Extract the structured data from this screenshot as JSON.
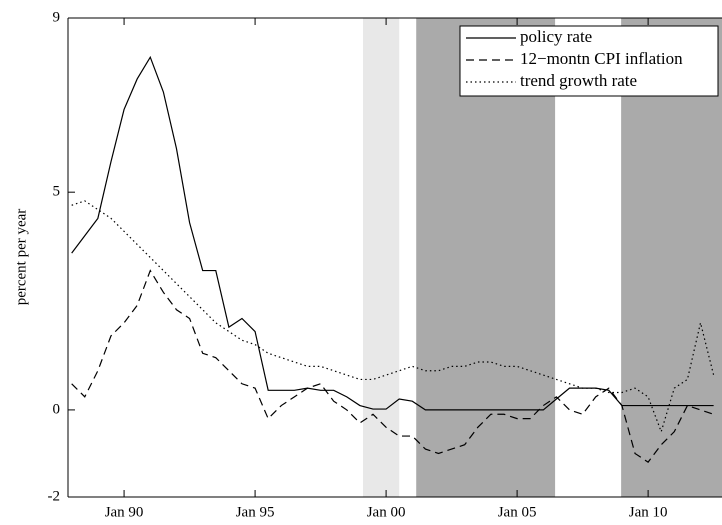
{
  "chart_data": {
    "type": "line",
    "y_label": "percent per year",
    "xlim": [
      1987.86,
      2012.82
    ],
    "ylim": [
      -2,
      9
    ],
    "yticks": [
      -2,
      0,
      5,
      9
    ],
    "xticks": [
      {
        "value": 1990,
        "label": "Jan 90"
      },
      {
        "value": 1995,
        "label": "Jan 95"
      },
      {
        "value": 2000,
        "label": "Jan 00"
      },
      {
        "value": 2005,
        "label": "Jan 05"
      },
      {
        "value": 2010,
        "label": "Jan 10"
      }
    ],
    "legend": "upper right",
    "shaded_regions": [
      {
        "start": 1999.12,
        "end": 2000.5,
        "color": "#e8e8e8"
      },
      {
        "start": 2001.15,
        "end": 2006.45,
        "color": "#aaaaaa"
      },
      {
        "start": 2008.97,
        "end": 2012.82,
        "color": "#aaaaaa"
      }
    ],
    "x": [
      1988,
      1988.5,
      1989,
      1989.5,
      1990,
      1990.5,
      1991,
      1991.5,
      1992,
      1992.5,
      1993,
      1993.5,
      1994,
      1994.5,
      1995,
      1995.5,
      1996,
      1996.5,
      1997,
      1997.5,
      1998,
      1998.5,
      1999,
      1999.5,
      2000,
      2000.5,
      2001,
      2001.5,
      2002,
      2002.5,
      2003,
      2003.5,
      2004,
      2004.5,
      2005,
      2005.5,
      2006,
      2006.5,
      2007,
      2007.5,
      2008,
      2008.5,
      2009,
      2009.5,
      2010,
      2010.5,
      2011,
      2011.5,
      2012,
      2012.5
    ],
    "series": [
      {
        "name": "policy rate",
        "color": "#000000",
        "dash": "solid",
        "values": [
          3.6,
          4.0,
          4.4,
          5.7,
          6.9,
          7.6,
          8.1,
          7.3,
          6.0,
          4.3,
          3.2,
          3.2,
          1.9,
          2.1,
          1.8,
          0.45,
          0.45,
          0.45,
          0.5,
          0.45,
          0.45,
          0.3,
          0.1,
          0.02,
          0.02,
          0.25,
          0.2,
          0,
          0,
          0,
          0,
          0,
          0,
          0,
          0,
          0,
          0,
          0.25,
          0.5,
          0.5,
          0.5,
          0.45,
          0.1,
          0.1,
          0.1,
          0.1,
          0.1,
          0.1,
          0.1,
          0.1
        ]
      },
      {
        "name": "12−montn CPI inflation",
        "color": "#000000",
        "dash": "dashed",
        "values": [
          0.6,
          0.3,
          0.9,
          1.7,
          2.0,
          2.4,
          3.2,
          2.7,
          2.3,
          2.1,
          1.3,
          1.2,
          0.9,
          0.6,
          0.5,
          -0.2,
          0.1,
          0.3,
          0.5,
          0.6,
          0.2,
          0.0,
          -0.3,
          -0.1,
          -0.4,
          -0.6,
          -0.6,
          -0.9,
          -1.0,
          -0.9,
          -0.8,
          -0.4,
          -0.1,
          -0.1,
          -0.2,
          -0.2,
          0.1,
          0.3,
          0.0,
          -0.1,
          0.3,
          0.5,
          0.1,
          -1.0,
          -1.2,
          -0.8,
          -0.5,
          0.1,
          0.0,
          -0.1
        ]
      },
      {
        "name": "trend growth rate",
        "color": "#000000",
        "dash": "dotted",
        "values": [
          4.7,
          4.8,
          4.6,
          4.4,
          4.1,
          3.8,
          3.5,
          3.2,
          2.9,
          2.6,
          2.3,
          2.0,
          1.8,
          1.6,
          1.5,
          1.3,
          1.2,
          1.1,
          1.0,
          1.0,
          0.9,
          0.8,
          0.7,
          0.7,
          0.8,
          0.9,
          1.0,
          0.9,
          0.9,
          1.0,
          1.0,
          1.1,
          1.1,
          1.0,
          1.0,
          0.9,
          0.8,
          0.7,
          0.6,
          0.5,
          0.5,
          0.4,
          0.4,
          0.5,
          0.3,
          -0.5,
          0.5,
          0.7,
          2.0,
          0.8
        ]
      }
    ]
  }
}
